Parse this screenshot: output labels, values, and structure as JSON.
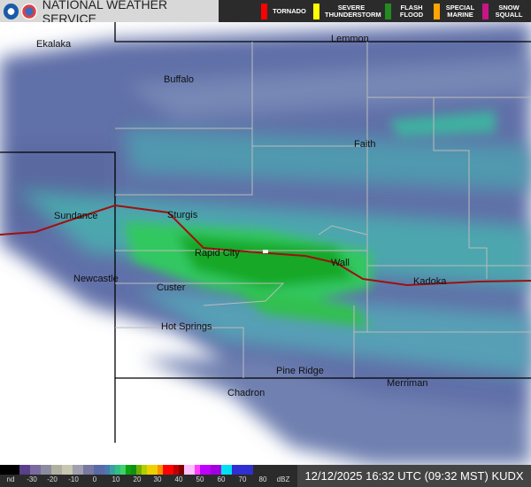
{
  "header": {
    "title": "NATIONAL WEATHER SERVICE",
    "warnings": [
      {
        "label": "TORNADO",
        "color": "#ff0000"
      },
      {
        "label": "SEVERE THUNDERSTORM",
        "color": "#ffff00"
      },
      {
        "label": "FLASH FLOOD",
        "color": "#228b22"
      },
      {
        "label": "SPECIAL MARINE",
        "color": "#ffa500"
      },
      {
        "label": "SNOW SQUALL",
        "color": "#c71585"
      }
    ]
  },
  "map": {
    "cities": [
      "Ekalaka",
      "Lemmon",
      "Buffalo",
      "Faith",
      "Sundance",
      "Sturgis",
      "Rapid City",
      "Wall",
      "Newcastle",
      "Custer",
      "Kadoka",
      "Hot Springs",
      "Pine Ridge",
      "Chadron",
      "Merriman"
    ]
  },
  "legend": {
    "labels": [
      "nd",
      "-30",
      "-20",
      "-10",
      "0",
      "10",
      "20",
      "30",
      "40",
      "50",
      "60",
      "70",
      "80",
      "dBZ"
    ]
  },
  "timestamp": "12/12/2025 16:32 UTC (09:32 MST) KUDX"
}
